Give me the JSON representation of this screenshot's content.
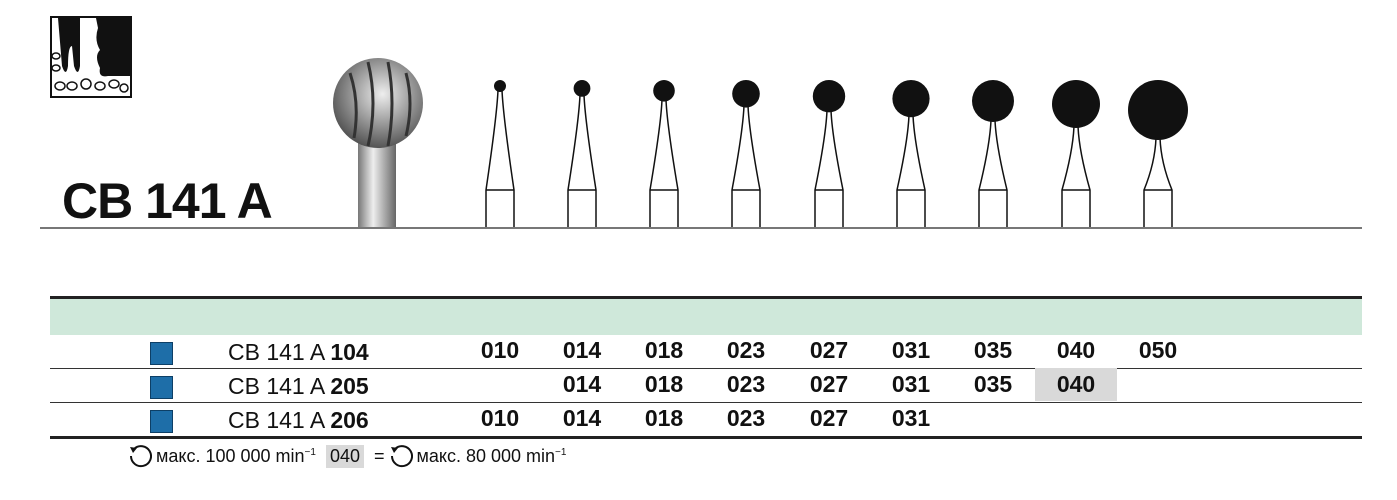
{
  "product": {
    "title": "CB 141 A",
    "logo": "tooth-bone-pictogram"
  },
  "sizes": [
    "010",
    "014",
    "018",
    "023",
    "027",
    "031",
    "035",
    "040",
    "050"
  ],
  "rows": [
    {
      "prefix": "CB 141 A",
      "suffix": "104",
      "sizes": [
        "010",
        "014",
        "018",
        "023",
        "027",
        "031",
        "035",
        "040",
        "050"
      ],
      "highlight": []
    },
    {
      "prefix": "CB 141 A",
      "suffix": "205",
      "sizes": [
        "",
        "014",
        "018",
        "023",
        "027",
        "031",
        "035",
        "040",
        ""
      ],
      "highlight": [
        "040"
      ]
    },
    {
      "prefix": "CB 141 A",
      "suffix": "206",
      "sizes": [
        "010",
        "014",
        "018",
        "023",
        "027",
        "031",
        "",
        "",
        ""
      ],
      "highlight": []
    }
  ],
  "colors": {
    "band": "#cfe8da",
    "marker": "#1e6ea8",
    "highlight": "#d9d9d9"
  },
  "footer": {
    "icon": "rotation-icon",
    "max1": "макс. 100 000 min",
    "sup": "−1",
    "code": "040",
    "eq": "=",
    "max2": "макс. 80 000 min"
  }
}
